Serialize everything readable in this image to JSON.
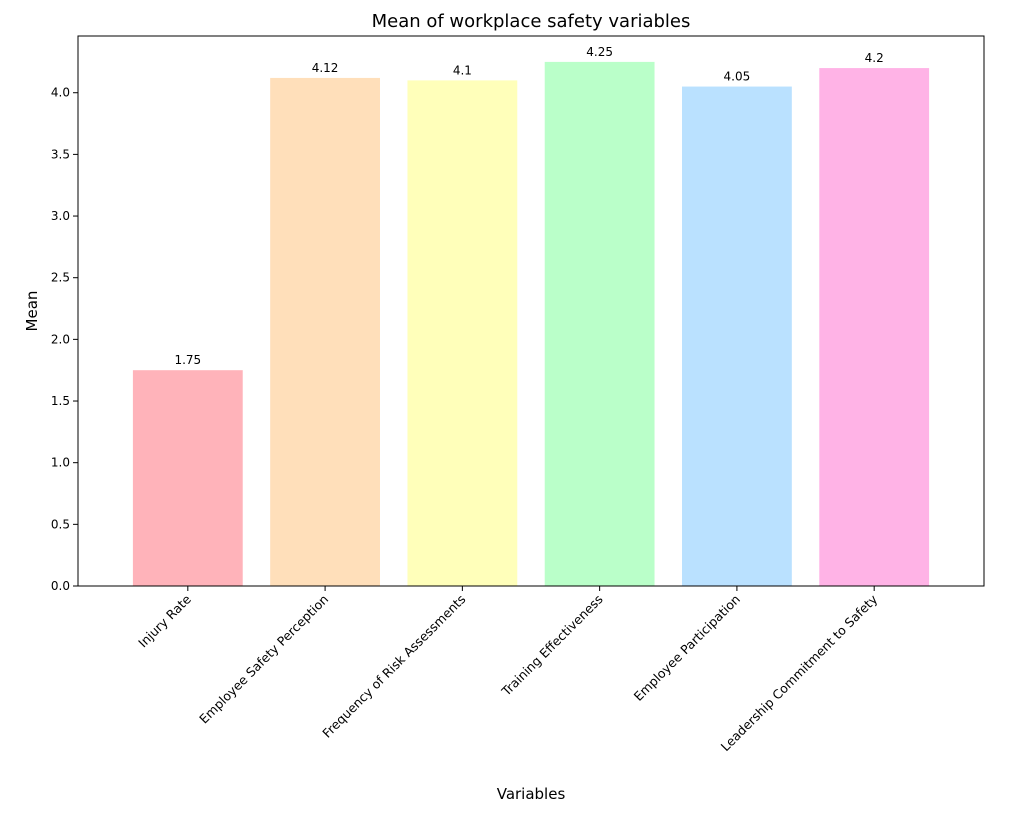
{
  "chart_data": {
    "type": "bar",
    "title": "Mean of workplace safety variables",
    "xlabel": "Variables",
    "ylabel": "Mean",
    "ylim": [
      0,
      4.46
    ],
    "yticks": [
      "0.0",
      "0.5",
      "1.0",
      "1.5",
      "2.0",
      "2.5",
      "3.0",
      "3.5",
      "4.0"
    ],
    "categories": [
      "Injury Rate",
      "Employee Safety Perception",
      "Frequency of Risk Assessments",
      "Training Effectiveness",
      "Employee Participation",
      "Leadership Commitment to Safety"
    ],
    "values": [
      1.75,
      4.12,
      4.1,
      4.25,
      4.05,
      4.2
    ],
    "value_labels": [
      "1.75",
      "4.12",
      "4.1",
      "4.25",
      "4.05",
      "4.2"
    ],
    "colors": [
      "#ffb3ba",
      "#ffdfba",
      "#ffffba",
      "#baffc9",
      "#bae1ff",
      "#ffb3e6"
    ],
    "grid": false,
    "legend": "none"
  }
}
